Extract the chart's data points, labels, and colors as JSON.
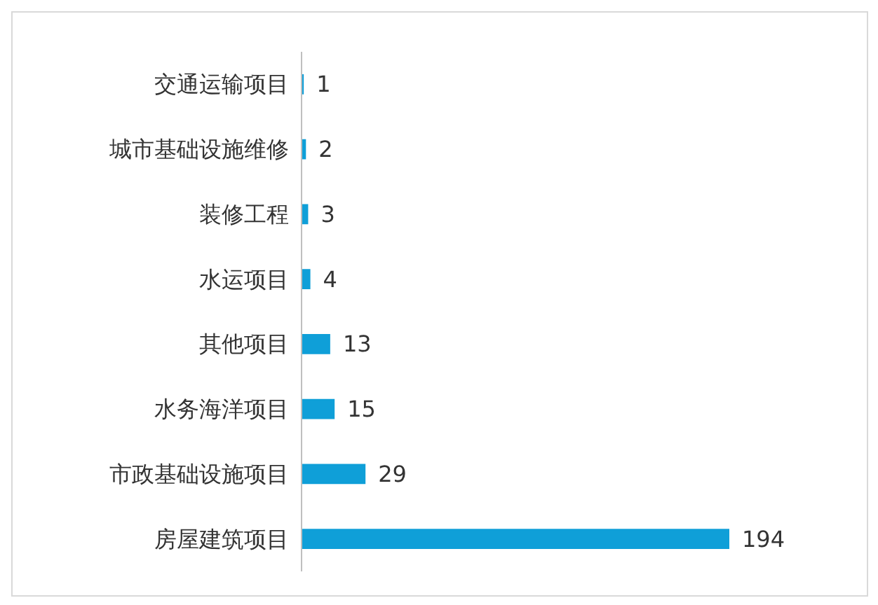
{
  "chart_data": {
    "type": "bar",
    "orientation": "horizontal",
    "categories": [
      "交通运输项目",
      "城市基础设施维修",
      "装修工程",
      "水运项目",
      "其他项目",
      "水务海洋项目",
      "市政基础设施项目",
      "房屋建筑项目"
    ],
    "values": [
      1,
      2,
      3,
      4,
      13,
      15,
      29,
      194
    ],
    "color": "#0f9fd8",
    "data_labels": true
  }
}
